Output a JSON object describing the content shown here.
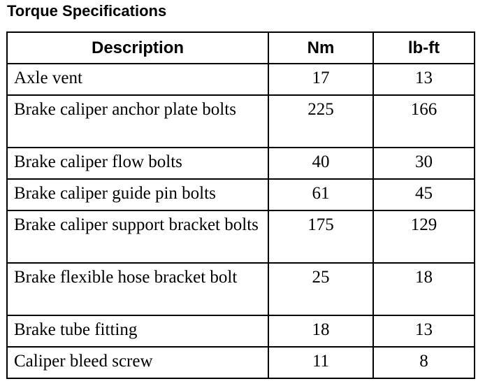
{
  "title": "Torque Specifications",
  "table": {
    "headers": [
      "Description",
      "Nm",
      "lb-ft"
    ],
    "rows": [
      {
        "description": "Axle vent",
        "nm": "17",
        "lbft": "13"
      },
      {
        "description": "Brake caliper anchor plate bolts",
        "nm": "225",
        "lbft": "166"
      },
      {
        "description": "Brake caliper flow bolts",
        "nm": "40",
        "lbft": "30"
      },
      {
        "description": "Brake caliper guide pin bolts",
        "nm": "61",
        "lbft": "45"
      },
      {
        "description": "Brake caliper support bracket bolts",
        "nm": "175",
        "lbft": "129"
      },
      {
        "description": "Brake flexible hose bracket bolt",
        "nm": "25",
        "lbft": "18"
      },
      {
        "description": "Brake tube fitting",
        "nm": "18",
        "lbft": "13"
      },
      {
        "description": "Caliper bleed screw",
        "nm": "11",
        "lbft": "8"
      }
    ]
  }
}
